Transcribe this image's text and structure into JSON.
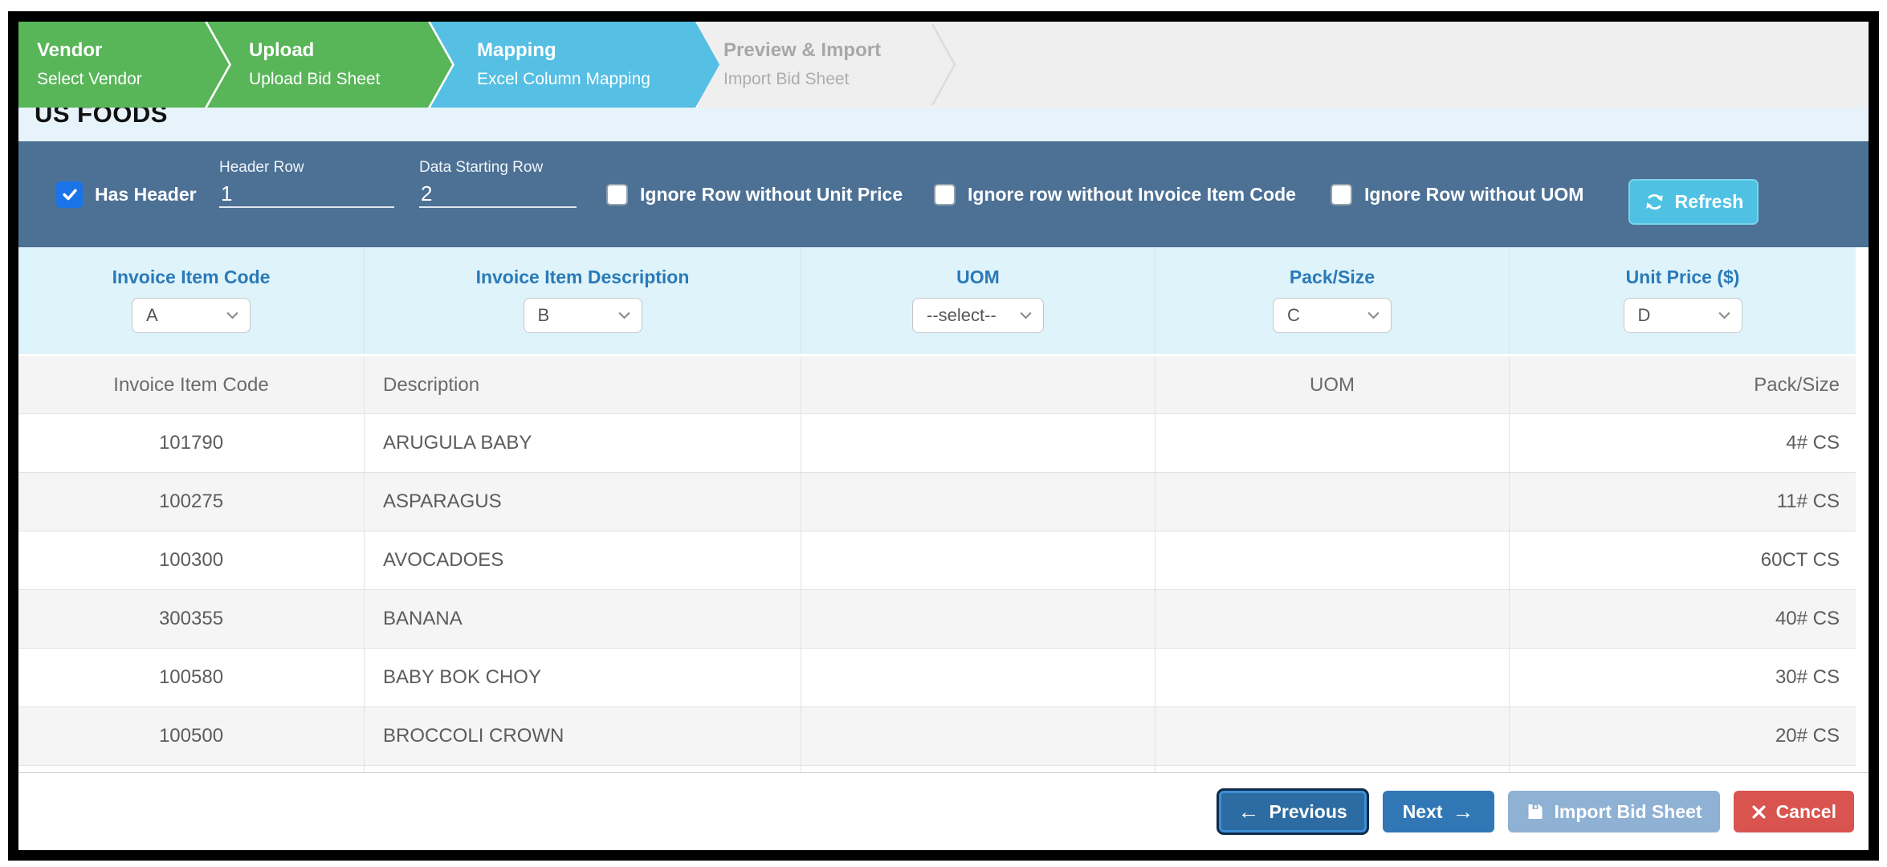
{
  "wizard": {
    "steps": [
      {
        "title": "Vendor",
        "subtitle": "Select Vendor",
        "state": "done"
      },
      {
        "title": "Upload",
        "subtitle": "Upload Bid Sheet",
        "state": "done"
      },
      {
        "title": "Mapping",
        "subtitle": "Excel Column Mapping",
        "state": "active"
      },
      {
        "title": "Preview & Import",
        "subtitle": "Import Bid Sheet",
        "state": "pending"
      }
    ]
  },
  "vendor_heading": "US FOODS",
  "toolbar": {
    "has_header": {
      "label": "Has Header",
      "checked": true
    },
    "header_row": {
      "label": "Header Row",
      "value": "1"
    },
    "data_starting_row": {
      "label": "Data Starting Row",
      "value": "2"
    },
    "ignore_checkboxes": [
      {
        "label": "Ignore Row without Unit Price",
        "checked": false
      },
      {
        "label": "Ignore row without Invoice Item Code",
        "checked": false
      },
      {
        "label": "Ignore Row without UOM",
        "checked": false
      }
    ],
    "refresh_label": "Refresh"
  },
  "mapping": {
    "columns": [
      {
        "label": "Invoice Item Code",
        "selected": "A"
      },
      {
        "label": "Invoice Item Description",
        "selected": "B"
      },
      {
        "label": "UOM",
        "selected": "--select--"
      },
      {
        "label": "Pack/Size",
        "selected": "C"
      },
      {
        "label": "Unit Price ($)",
        "selected": "D"
      }
    ]
  },
  "preview_table": {
    "headers": [
      "Invoice Item Code",
      "Description",
      "",
      "UOM",
      "Pack/Size"
    ],
    "rows": [
      [
        "101790",
        "ARUGULA BABY",
        "",
        "",
        "4# CS"
      ],
      [
        "100275",
        "ASPARAGUS",
        "",
        "",
        "11# CS"
      ],
      [
        "100300",
        "AVOCADOES",
        "",
        "",
        "60CT CS"
      ],
      [
        "300355",
        "BANANA",
        "",
        "",
        "40# CS"
      ],
      [
        "100580",
        "BABY BOK CHOY",
        "",
        "",
        "30# CS"
      ],
      [
        "100500",
        "BROCCOLI CROWN",
        "",
        "",
        "20# CS"
      ]
    ]
  },
  "footer": {
    "previous": "Previous",
    "next": "Next",
    "import": "Import Bid Sheet",
    "cancel": "Cancel"
  },
  "colors": {
    "step_done_green": "#58B558",
    "step_active_blue": "#55BFE4",
    "toolbar_slate": "#4D7195",
    "refresh_cyan": "#4FC2E4",
    "mapping_label_blue": "#2A7AB8",
    "checkbox_blue": "#1A73E8",
    "primary_blue": "#3177B5",
    "danger_red": "#D9534F",
    "disabled_blue": "#8FB1D4",
    "vendor_band_blue": "#E7F3FB",
    "mapping_band_cyan": "#DFF3FA"
  }
}
